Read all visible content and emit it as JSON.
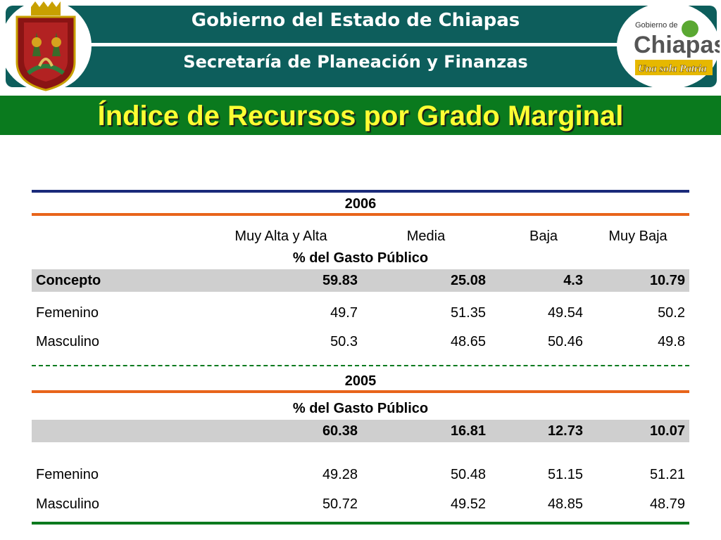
{
  "header": {
    "title_line1": "Gobierno del Estado de Chiapas",
    "title_line2": "Secretaría de Planeación y Finanzas",
    "right_logo": {
      "small_text": "Gobierno de",
      "main_text": "Chiapas",
      "tagline": "Una sola Patria"
    },
    "left_logo": "coat-of-arms-icon"
  },
  "banner": {
    "title": "Índice de Recursos por Grado Marginal"
  },
  "table": {
    "columns": [
      "Muy Alta y Alta",
      "Media",
      "Baja",
      "Muy Baja"
    ],
    "sections": [
      {
        "year": "2006",
        "subtitle": "% del Gasto Público",
        "summary_label": "Concepto",
        "summary_values": [
          "59.83",
          "25.08",
          "4.3",
          "10.79"
        ],
        "rows": [
          {
            "label": "Femenino",
            "values": [
              "49.7",
              "51.35",
              "49.54",
              "50.2"
            ]
          },
          {
            "label": "Masculino",
            "values": [
              "50.3",
              "48.65",
              "50.46",
              "49.8"
            ]
          }
        ]
      },
      {
        "year": "2005",
        "subtitle": "% del Gasto Público",
        "summary_label": "",
        "summary_values": [
          "60.38",
          "16.81",
          "12.73",
          "10.07"
        ],
        "rows": [
          {
            "label": "Femenino",
            "values": [
              "49.28",
              "50.48",
              "51.15",
              "51.21"
            ]
          },
          {
            "label": "Masculino",
            "values": [
              "50.72",
              "49.52",
              "48.85",
              "48.79"
            ]
          }
        ]
      }
    ]
  },
  "colors": {
    "teal": "#0d5e5c",
    "green": "#0a7a1e",
    "yellow": "#ffff33",
    "navy": "#1a2a7a",
    "orange": "#e8641a",
    "grey": "#cfcfcf"
  }
}
